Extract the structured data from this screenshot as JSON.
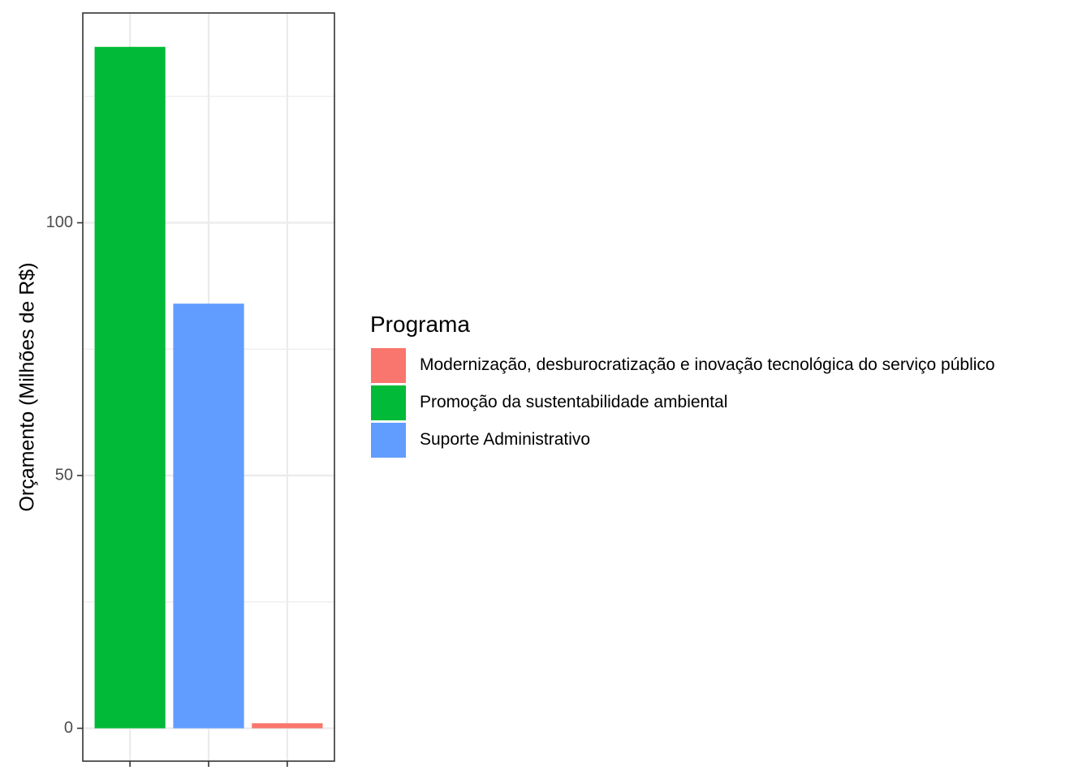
{
  "chart_data": {
    "type": "bar",
    "categories": [
      "Promoção da sustentabilidade ambiental",
      "Suporte Administrativo",
      "Modernização, desburocratização e inovação tecnológica do serviço público"
    ],
    "values": [
      134.8,
      84.0,
      1.0
    ],
    "colors": [
      "#00BA38",
      "#619CFF",
      "#F8766D"
    ],
    "title": "",
    "xlabel": "",
    "ylabel": "Orçamento (Milhões de R$)",
    "ylim": [
      -6.5,
      141.5
    ],
    "yticks": [
      0,
      50,
      100
    ],
    "grid": true,
    "legend": {
      "title": "Programa",
      "position": "right",
      "entries": [
        {
          "label": "Modernização, desburocratização e inovação tecnológica do serviço público",
          "color": "#F8766D"
        },
        {
          "label": "Promoção da sustentabilidade ambiental",
          "color": "#00BA38"
        },
        {
          "label": "Suporte Administrativo",
          "color": "#619CFF"
        }
      ]
    }
  }
}
